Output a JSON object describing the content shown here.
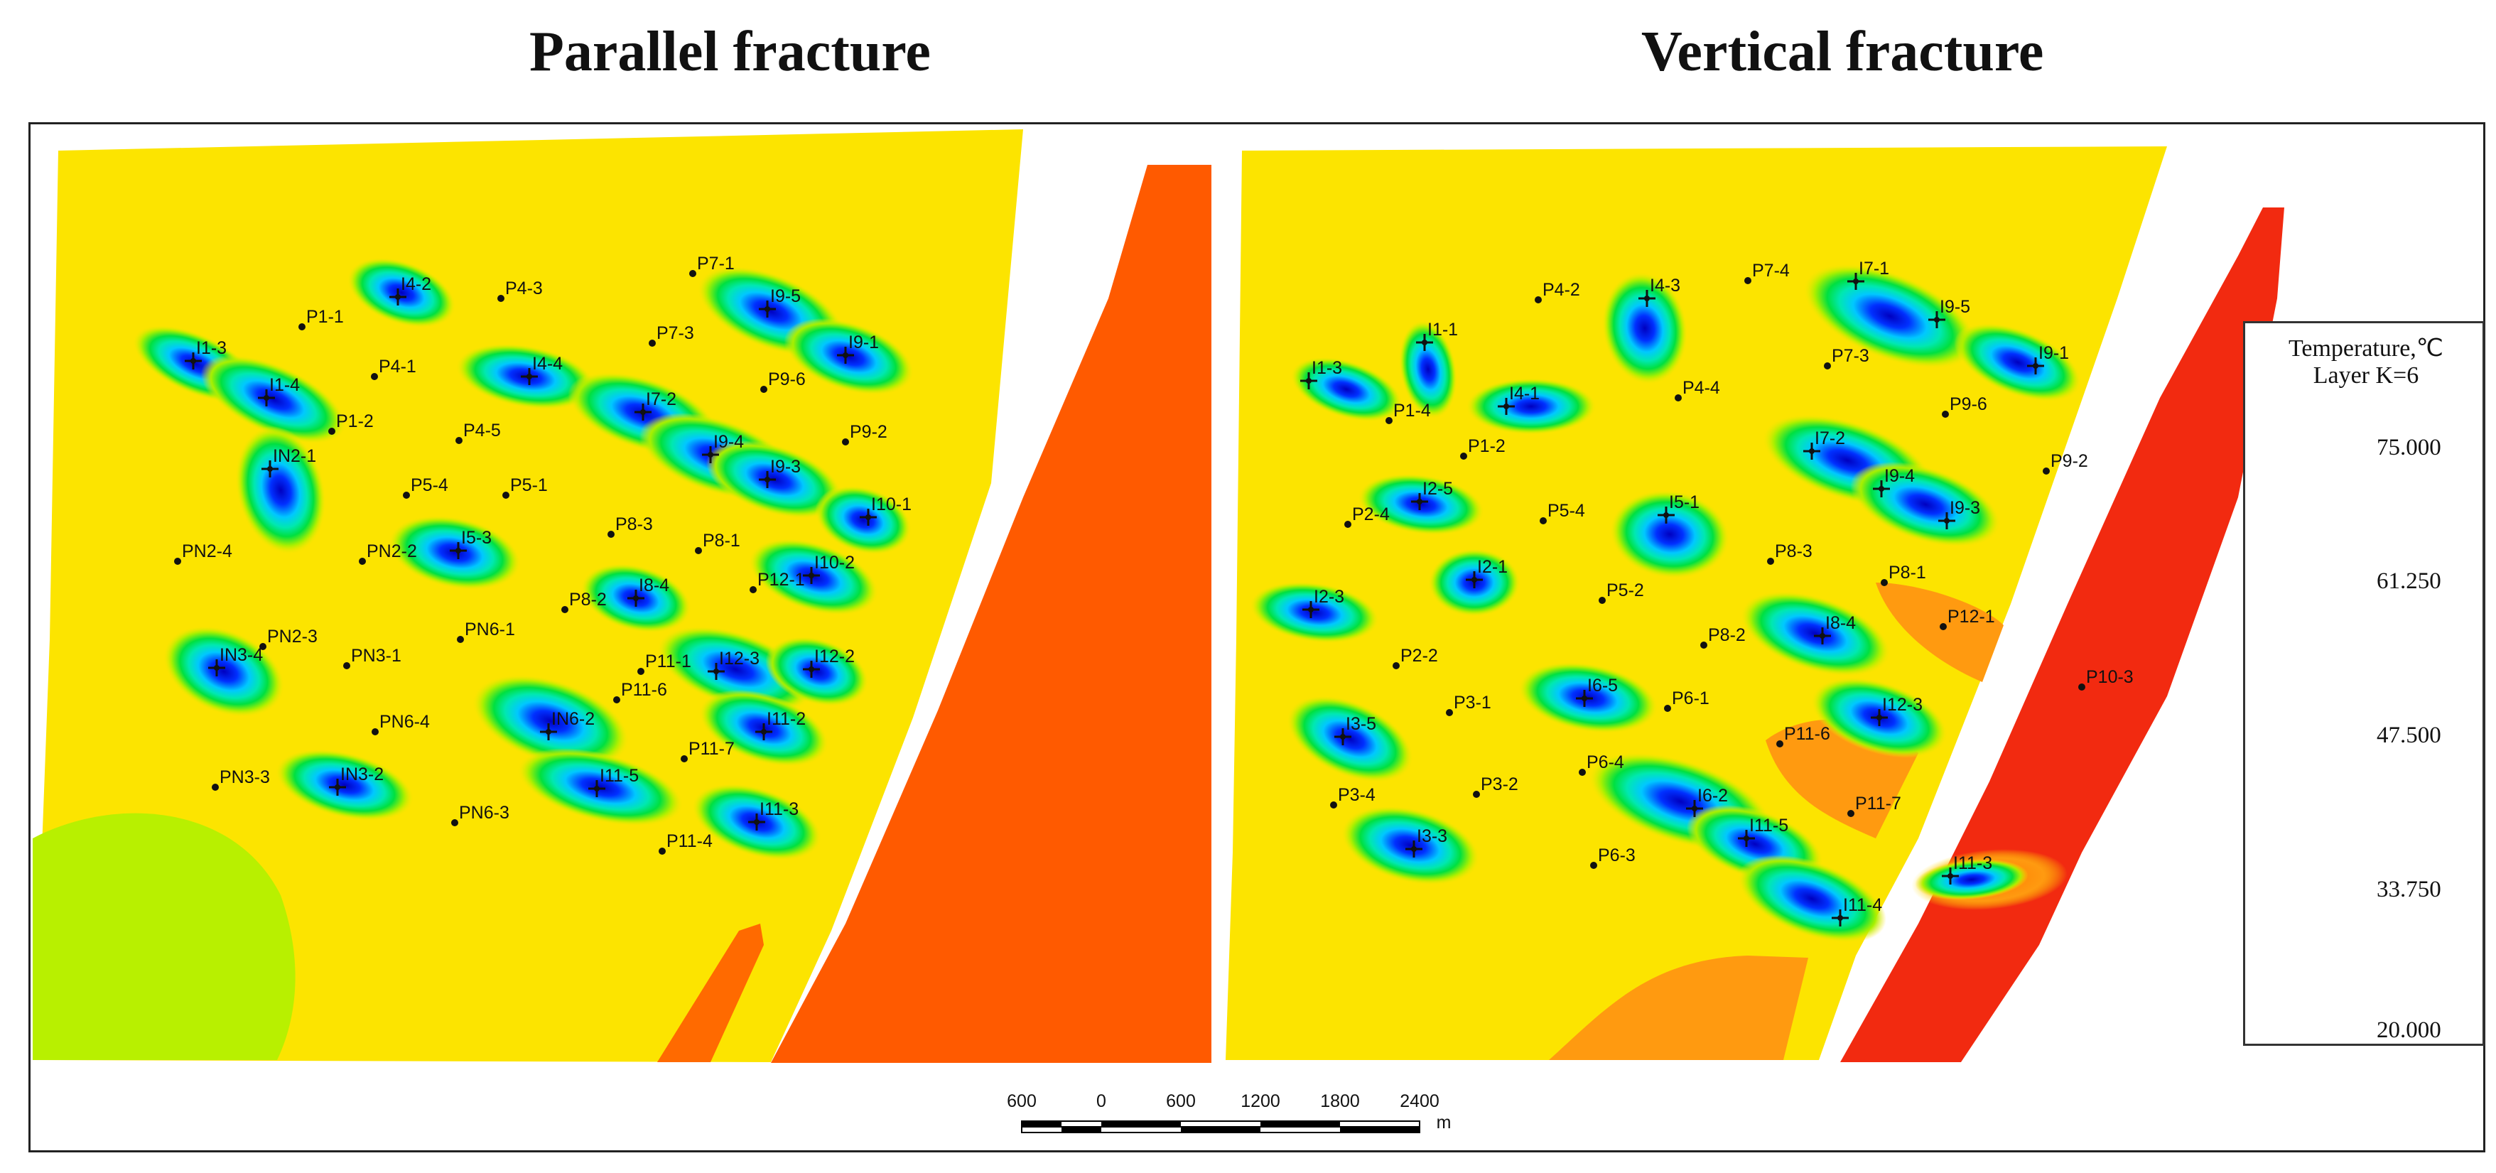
{
  "titles": {
    "left": "Parallel fracture",
    "right": "Vertical fracture"
  },
  "legend": {
    "title_line1": "Temperature,℃",
    "title_line2": "Layer K=6",
    "ticks": [
      "75.000",
      "61.250",
      "47.500",
      "33.750",
      "20.000"
    ],
    "colors": [
      "#e8150f",
      "#ff8a00",
      "#ffe500",
      "#ccf000",
      "#00e040",
      "#00e8ff",
      "#0030ff",
      "#0000c0"
    ]
  },
  "scale_bar": {
    "labels": [
      "600",
      "0",
      "600",
      "1200",
      "1800",
      "2400"
    ],
    "unit": "m"
  },
  "left_map": {
    "injectors": [
      "I4-2",
      "I1-3",
      "I1-4",
      "I4-4",
      "I7-2",
      "I9-5",
      "I9-1",
      "I9-4",
      "I9-3",
      "IN2-1",
      "I5-3",
      "I10-1",
      "I10-2",
      "I8-4",
      "IN3-4",
      "I12-3",
      "I12-2",
      "IN6-2",
      "I11-2",
      "IN3-2",
      "I11-5",
      "I11-3"
    ],
    "producers": [
      "P4-3",
      "P1-1",
      "P7-1",
      "P7-3",
      "P4-1",
      "P9-6",
      "P1-2",
      "P4-5",
      "P9-2",
      "P5-4",
      "P5-1",
      "P8-3",
      "P8-1",
      "PN2-4",
      "PN2-2",
      "P12-1",
      "PN6-1",
      "P8-2",
      "PN2-3",
      "PN3-1",
      "P11-1",
      "P11-6",
      "PN6-4",
      "P11-7",
      "PN3-3",
      "PN6-3",
      "P11-4"
    ]
  },
  "right_map": {
    "injectors": [
      "I7-1",
      "I4-3",
      "I9-5",
      "I1-1",
      "I1-3",
      "I9-1",
      "I4-1",
      "I7-2",
      "I9-4",
      "I2-5",
      "I5-1",
      "I9-3",
      "I2-1",
      "I2-3",
      "I8-4",
      "I6-5",
      "I12-3",
      "I3-5",
      "I6-2",
      "I11-5",
      "I3-3",
      "I11-3",
      "I11-4"
    ],
    "producers": [
      "P7-4",
      "P4-2",
      "P7-3",
      "P4-4",
      "P1-4",
      "P9-6",
      "P1-2",
      "P9-2",
      "P2-4",
      "P5-4",
      "P8-3",
      "P8-1",
      "P5-2",
      "P12-1",
      "P8-2",
      "P2-2",
      "P10-3",
      "P3-1",
      "P6-1",
      "P11-6",
      "P6-4",
      "P3-2",
      "P11-7",
      "P3-4",
      "P6-3"
    ]
  }
}
